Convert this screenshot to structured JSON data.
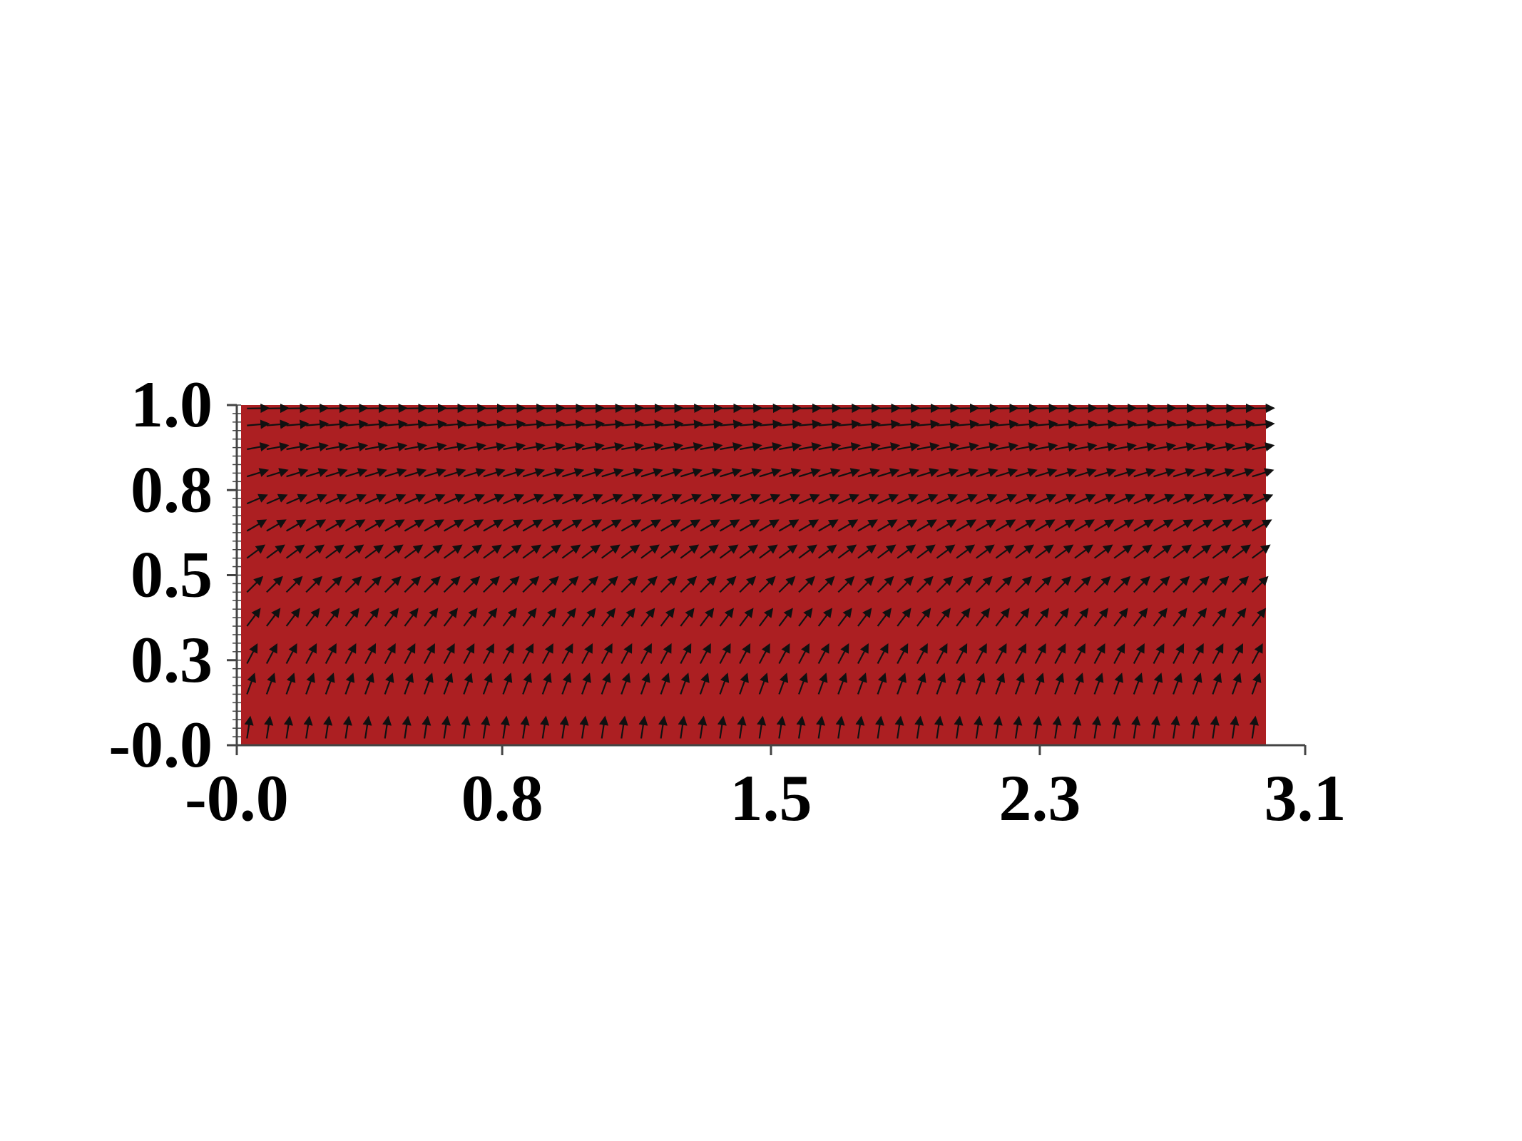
{
  "chart_data": {
    "type": "quiver",
    "title": "",
    "xlabel": "",
    "ylabel": "",
    "x_tick_labels": [
      "-0.0",
      "0.8",
      "1.5",
      "2.3",
      "3.1"
    ],
    "y_tick_labels": [
      "-0.0",
      "0.3",
      "0.5",
      "0.8",
      "1.0"
    ],
    "x_ticks": [
      0.0,
      0.78,
      1.57,
      2.36,
      3.14
    ],
    "y_ticks": [
      0.0,
      0.25,
      0.5,
      0.75,
      1.0
    ],
    "xlim": [
      0.0,
      3.14
    ],
    "ylim": [
      0.0,
      1.0
    ],
    "grid": false,
    "field": "unit vectors at (x, y) pointing at angle atan2(cos(pi*y/2), sin(pi*y/2)) — vertical at y=0, nearly horizontal at y=1",
    "x_samples": 52,
    "y_samples": [
      0.02,
      0.15,
      0.24,
      0.35,
      0.45,
      0.55,
      0.63,
      0.71,
      0.79,
      0.87,
      0.94,
      0.99
    ],
    "colors": {
      "field_background": "#ac1f22",
      "arrow": "#111111",
      "axis": "#444444"
    }
  }
}
